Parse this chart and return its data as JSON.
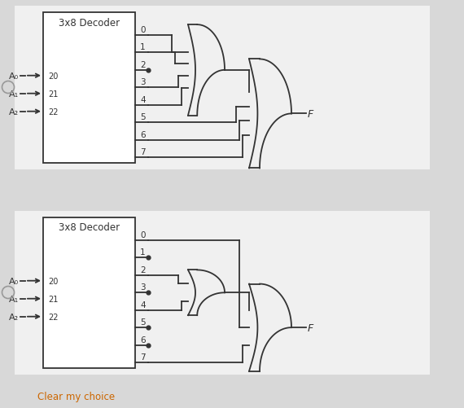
{
  "bg_color": "#d8d8d8",
  "panel_color": "#f0f0f0",
  "box_color": "#ffffff",
  "line_color": "#333333",
  "clear_color": "#cc6600",
  "radio_color": "#888888",
  "diag1": {
    "title": "3x8 Decoder",
    "inputs": [
      "A₀",
      "A₁",
      "A₂"
    ],
    "input_sups": [
      "0",
      "1",
      "2"
    ],
    "inner_inputs": [
      0,
      1,
      3,
      4
    ],
    "dot_outputs": [
      2
    ],
    "outer_extra": [
      5,
      6,
      7
    ]
  },
  "diag2": {
    "title": "3x8 Decoder",
    "inputs": [
      "A₀",
      "A₁",
      "A₂"
    ],
    "input_sups": [
      "0",
      "1",
      "2"
    ],
    "inner_inputs": [
      2,
      4
    ],
    "dot_outputs": [
      1,
      3,
      5,
      6
    ],
    "outer_extra": [
      0,
      7
    ]
  }
}
